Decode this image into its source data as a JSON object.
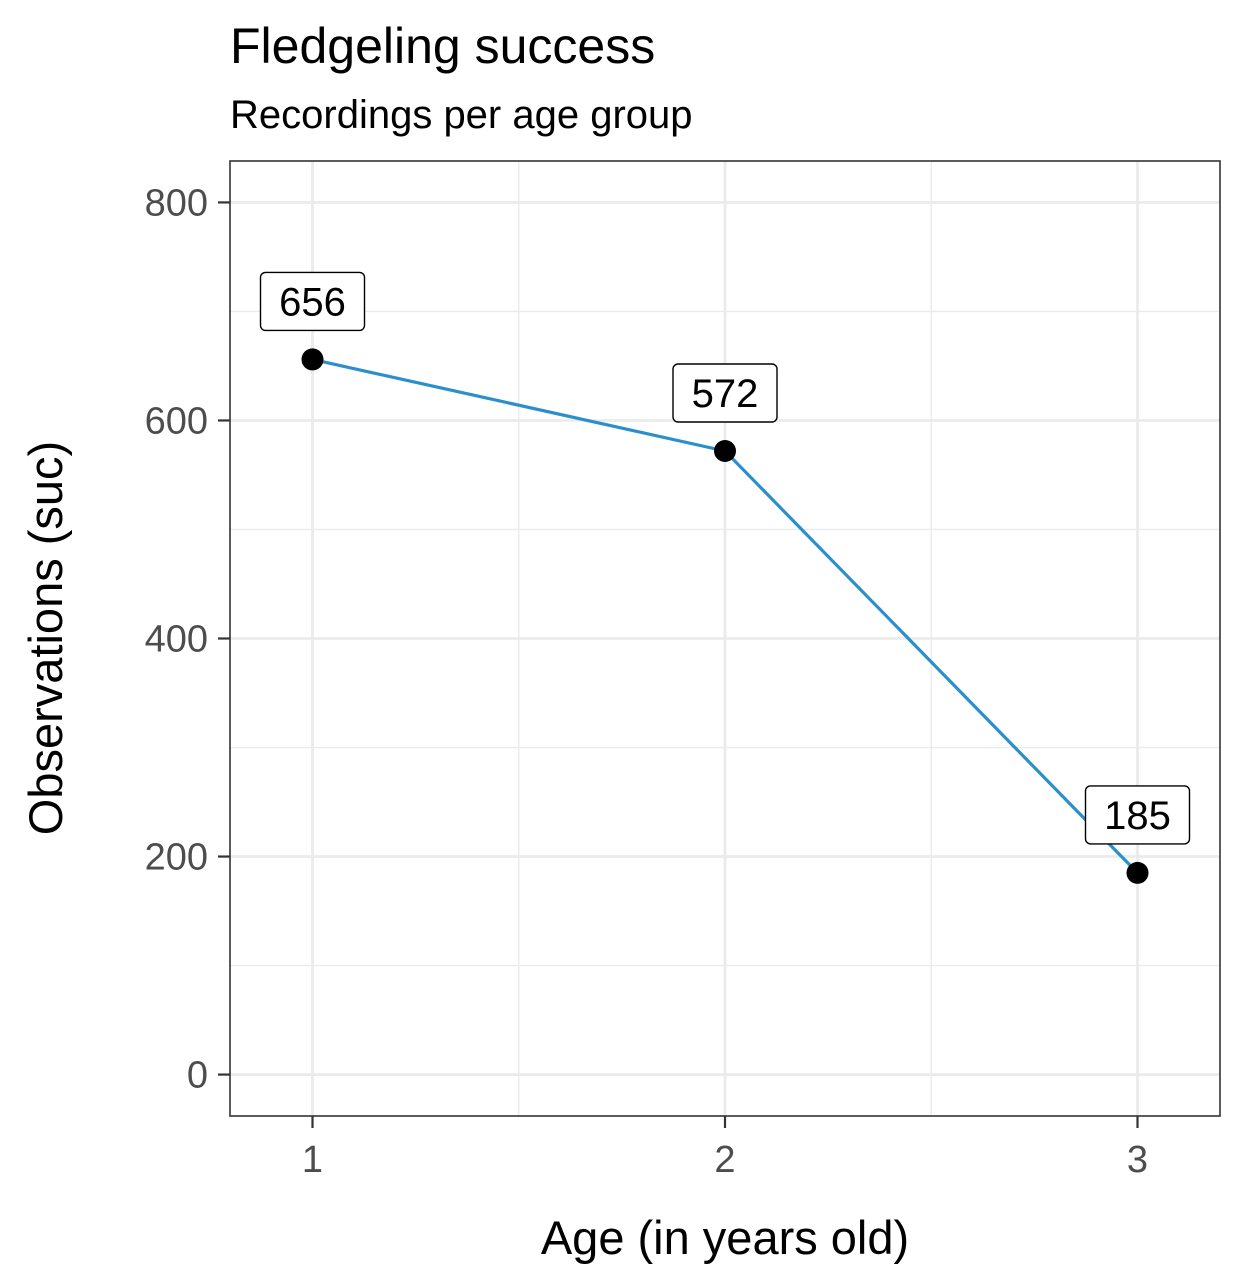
{
  "chart_data": {
    "type": "line",
    "title": "Fledgeling success",
    "subtitle": "Recordings per age group",
    "xlabel": "Age (in years old)",
    "ylabel": "Observations (suc)",
    "x": [
      1,
      2,
      3
    ],
    "x_tick_labels": [
      "1",
      "2",
      "3"
    ],
    "xlim": [
      0.8,
      3.2
    ],
    "ylim": [
      -38,
      838
    ],
    "y_ticks": [
      0,
      200,
      400,
      600,
      800
    ],
    "y_tick_labels": [
      "0",
      "200",
      "400",
      "600",
      "800"
    ],
    "series": [
      {
        "values": [
          656,
          572,
          185
        ],
        "data_labels": [
          "656",
          "572",
          "185"
        ]
      }
    ],
    "grid": true,
    "legend": "none",
    "colors": {
      "line": "#2b8fcb",
      "point": "#000000",
      "grid": "#ebebeb",
      "panel_border": "#333333"
    }
  }
}
